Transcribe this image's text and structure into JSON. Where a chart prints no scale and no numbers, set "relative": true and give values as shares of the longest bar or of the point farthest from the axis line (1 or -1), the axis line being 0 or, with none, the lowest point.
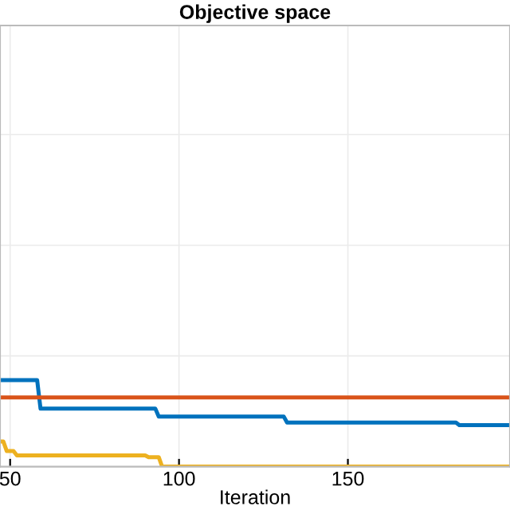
{
  "chart_data": {
    "type": "line",
    "title": "Objective space",
    "xlabel": "Iteration",
    "relative": true,
    "xlim": [
      47,
      198
    ],
    "xticks": [
      50,
      100,
      150
    ],
    "grid": true,
    "line_style": "solid",
    "marker": "none",
    "series": [
      {
        "color": "#0072bd",
        "x": [
          47,
          58,
          59,
          93,
          94,
          131,
          132,
          182,
          183,
          198
        ],
        "values": [
          1,
          1,
          0.67,
          0.67,
          0.58,
          0.58,
          0.51,
          0.51,
          0.48,
          0.48
        ]
      },
      {
        "color": "#d95319",
        "x": [
          47,
          198
        ],
        "values": [
          0.8,
          0.8
        ]
      },
      {
        "color": "#edb120",
        "x": [
          47,
          48,
          49,
          51,
          52,
          90,
          91,
          94,
          95,
          198
        ],
        "values": [
          0.29,
          0.29,
          0.18,
          0.18,
          0.13,
          0.13,
          0.11,
          0.11,
          0,
          0
        ]
      }
    ]
  }
}
